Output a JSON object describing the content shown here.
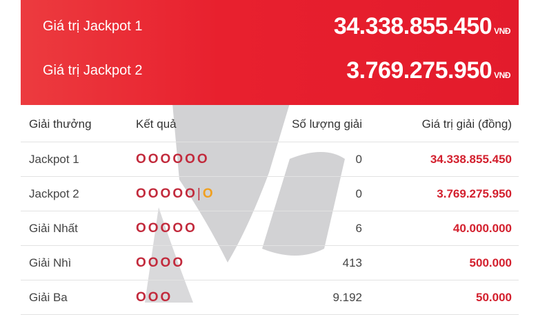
{
  "banner": {
    "rows": [
      {
        "label": "Giá trị Jackpot 1",
        "value": "34.338.855.450",
        "unit": "VNĐ"
      },
      {
        "label": "Giá trị Jackpot 2",
        "value": "3.769.275.950",
        "unit": "VNĐ"
      }
    ]
  },
  "table": {
    "headers": [
      "Giải thưởng",
      "Kết quả",
      "Số lượng giải",
      "Giá trị giải (đồng)"
    ],
    "rows": [
      {
        "name": "Jackpot 1",
        "result": "OOOOOO",
        "bonus": "",
        "count": "0",
        "value": "34.338.855.450"
      },
      {
        "name": "Jackpot 2",
        "result": "OOOOO",
        "bonus": "O",
        "count": "0",
        "value": "3.769.275.950"
      },
      {
        "name": "Giải Nhất",
        "result": "OOOOO",
        "bonus": "",
        "count": "6",
        "value": "40.000.000"
      },
      {
        "name": "Giải Nhì",
        "result": "OOOO",
        "bonus": "",
        "count": "413",
        "value": "500.000"
      },
      {
        "name": "Giải Ba",
        "result": "OOO",
        "bonus": "",
        "count": "9.192",
        "value": "50.000"
      }
    ]
  },
  "colors": {
    "banner": "#e31b2c",
    "prize": "#d3202e",
    "ball": "#c22a3c",
    "bonus_ball": "#f0a020"
  }
}
